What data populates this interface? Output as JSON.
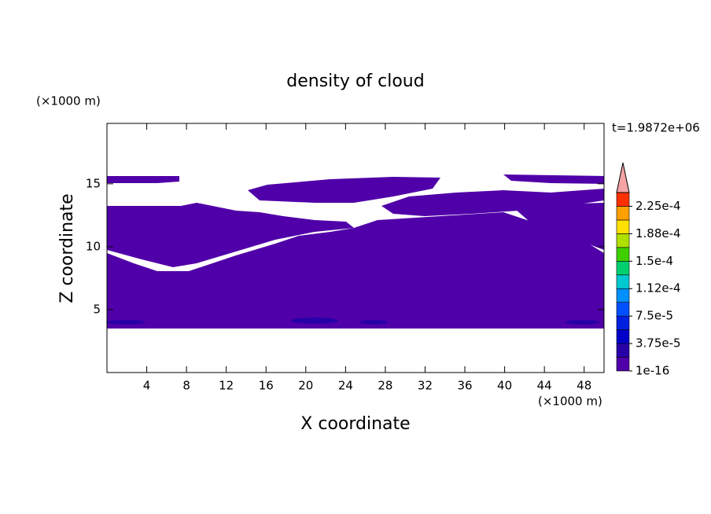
{
  "chart_data": {
    "type": "contour",
    "title": "density of cloud",
    "x_label": "X coordinate",
    "y_label": "Z coordinate",
    "x_unit": "(×1000 m)",
    "y_unit": "(×1000 m)",
    "time_label": "t=1.9872e+06",
    "xlim": [
      0,
      50
    ],
    "ylim": [
      0,
      19.8
    ],
    "xticks": [
      4,
      8,
      12,
      16,
      20,
      24,
      28,
      32,
      36,
      40,
      44,
      48
    ],
    "yticks": [
      5,
      10,
      15
    ],
    "levels": [
      {
        "value": 1e-16,
        "label": "1e-16"
      },
      {
        "value": 3.75e-05,
        "label": "3.75e-5"
      },
      {
        "value": 7.5e-05,
        "label": "7.5e-5"
      },
      {
        "value": 0.000112,
        "label": "1.12e-4"
      },
      {
        "value": 0.00015,
        "label": "1.5e-4"
      },
      {
        "value": 0.000188,
        "label": "1.88e-4"
      },
      {
        "value": 0.000225,
        "label": "2.25e-4"
      }
    ],
    "colors": [
      "#5000a8",
      "#2800a8",
      "#0000c8",
      "#0020e0",
      "#0050ff",
      "#0090ff",
      "#00c8d0",
      "#00d070",
      "#40d000",
      "#b0e000",
      "#ffe000",
      "#ffa000",
      "#ff3000"
    ],
    "extend_color": "#f4a4a4"
  }
}
